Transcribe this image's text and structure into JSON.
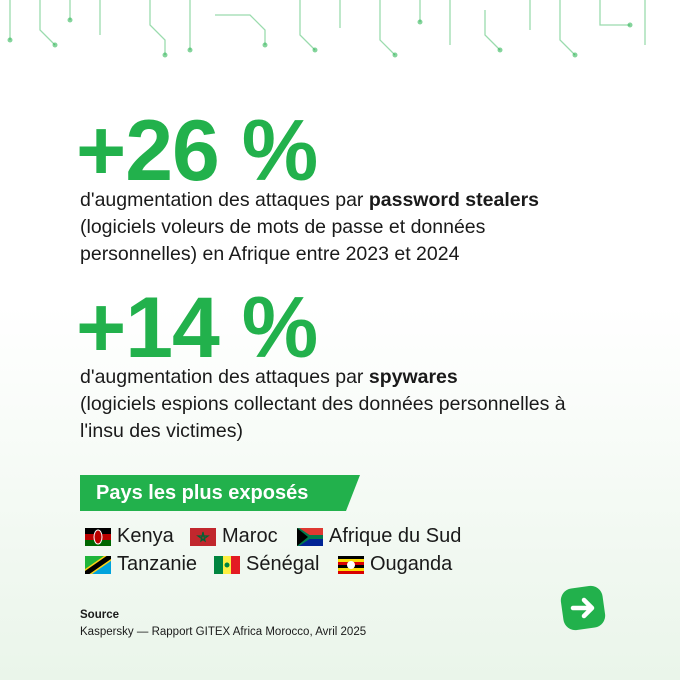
{
  "stats": [
    {
      "value": "+26 %",
      "text_before": "d'augmentation des attaques par",
      "text_bold": "password stealers",
      "text_after": "(logiciels voleurs de mots de passe et données personnelles) en Afrique entre 2023 et 2024"
    },
    {
      "value": "+14 %",
      "text_before": "d'augmentation des attaques par",
      "text_bold": "spywares",
      "text_after": "(logiciels espions collectant des données personnelles à l'insu des victimes)"
    }
  ],
  "countries": {
    "heading": "Pays les plus exposés",
    "list": [
      "Kenya",
      "Maroc",
      "Afrique du Sud",
      "Tanzanie",
      "Sénégal",
      "Ouganda"
    ]
  },
  "source": {
    "label": "Source",
    "text": "Kaspersky — Rapport GITEX Africa Morocco, Avril 2025"
  }
}
